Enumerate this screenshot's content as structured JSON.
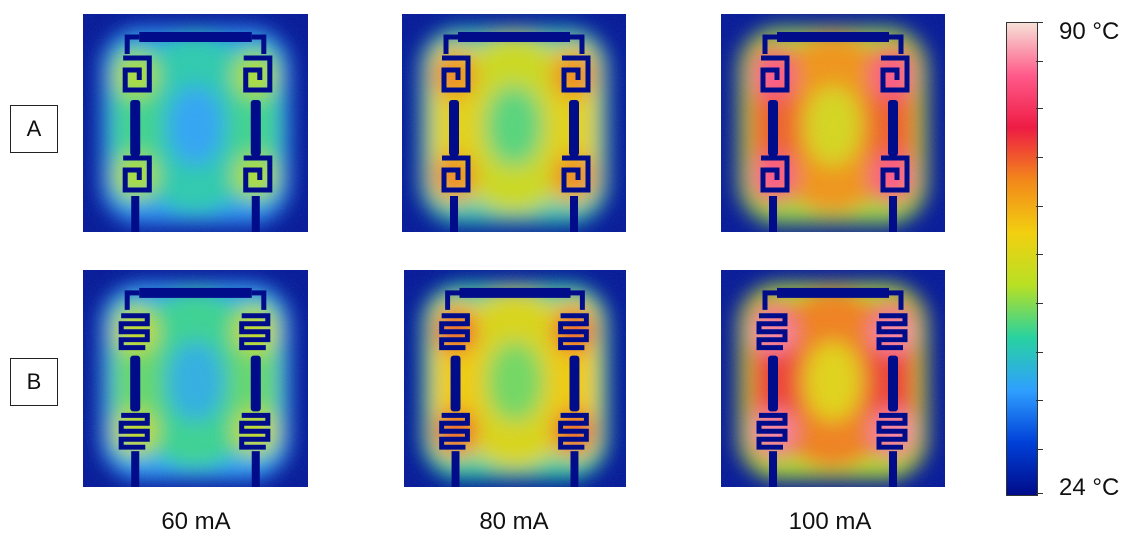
{
  "rows": [
    {
      "label": "A"
    },
    {
      "label": "B"
    }
  ],
  "columns": [
    {
      "label": "60 mA",
      "level": 0.25
    },
    {
      "label": "80 mA",
      "level": 0.55
    },
    {
      "label": "100 mA",
      "level": 0.85
    }
  ],
  "colorbar": {
    "max_label": "90 °C",
    "min_label": "24 °C",
    "max_value": 90,
    "min_value": 24,
    "colors": [
      "#000c8a",
      "#0040d8",
      "#2fa0ff",
      "#28d2a0",
      "#b8e024",
      "#f2cf10",
      "#f2881a",
      "#ee1c44",
      "#ff5a8a",
      "#f6e0d6"
    ]
  }
}
